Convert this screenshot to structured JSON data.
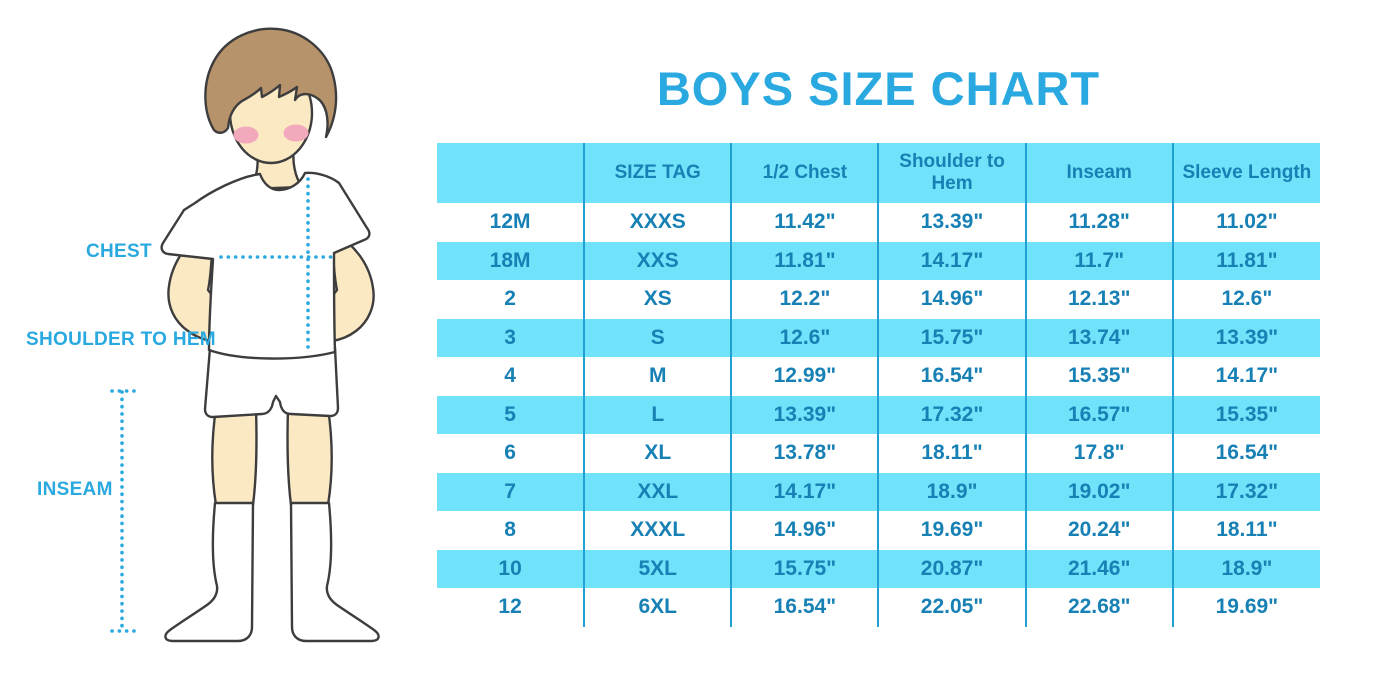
{
  "title": "BOYS SIZE CHART",
  "figure": {
    "labels": {
      "chest": "CHEST",
      "shoulder_to_hem": "SHOULDER TO HEM",
      "inseam": "INSEAM"
    }
  },
  "colors": {
    "accent": "#29A9E0",
    "table_stripe": "#70E2F9",
    "table_text": "#1780B4",
    "table_divider": "#21A0D4",
    "hair": "#B6936B",
    "skin": "#FBE9C4",
    "blush": "#F2A9BC",
    "outline": "#3D3D3D"
  },
  "chart_data": {
    "type": "table",
    "title": "BOYS SIZE CHART",
    "columns": [
      "",
      "SIZE TAG",
      "1/2 Chest",
      "Shoulder to Hem",
      "Inseam",
      "Sleeve Length"
    ],
    "rows": [
      [
        "12M",
        "XXXS",
        "11.42\"",
        "13.39\"",
        "11.28\"",
        "11.02\""
      ],
      [
        "18M",
        "XXS",
        "11.81\"",
        "14.17\"",
        "11.7\"",
        "11.81\""
      ],
      [
        "2",
        "XS",
        "12.2\"",
        "14.96\"",
        "12.13\"",
        "12.6\""
      ],
      [
        "3",
        "S",
        "12.6\"",
        "15.75\"",
        "13.74\"",
        "13.39\""
      ],
      [
        "4",
        "M",
        "12.99\"",
        "16.54\"",
        "15.35\"",
        "14.17\""
      ],
      [
        "5",
        "L",
        "13.39\"",
        "17.32\"",
        "16.57\"",
        "15.35\""
      ],
      [
        "6",
        "XL",
        "13.78\"",
        "18.11\"",
        "17.8\"",
        "16.54\""
      ],
      [
        "7",
        "XXL",
        "14.17\"",
        "18.9\"",
        "19.02\"",
        "17.32\""
      ],
      [
        "8",
        "XXXL",
        "14.96\"",
        "19.69\"",
        "20.24\"",
        "18.11\""
      ],
      [
        "10",
        "5XL",
        "15.75\"",
        "20.87\"",
        "21.46\"",
        "18.9\""
      ],
      [
        "12",
        "6XL",
        "16.54\"",
        "22.05\"",
        "22.68\"",
        "19.69\""
      ]
    ]
  }
}
